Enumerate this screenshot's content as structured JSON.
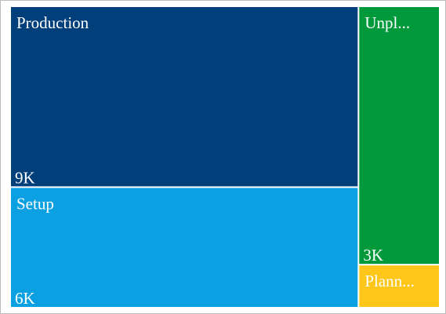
{
  "chart_data": {
    "type": "treemap",
    "title": "",
    "items": [
      {
        "name": "Production",
        "label": "Production",
        "value": 9,
        "value_label": "9K",
        "color": "#003f7a"
      },
      {
        "name": "Setup",
        "label": "Setup",
        "value": 6,
        "value_label": "6K",
        "color": "#0aa0e2"
      },
      {
        "name": "Unplanned",
        "label": "Unpl...",
        "value": 3,
        "value_label": "3K",
        "color": "#00993c"
      },
      {
        "name": "Planned",
        "label": "Plann...",
        "value": 0.5,
        "value_label": "",
        "color": "#ffc61a"
      }
    ]
  }
}
